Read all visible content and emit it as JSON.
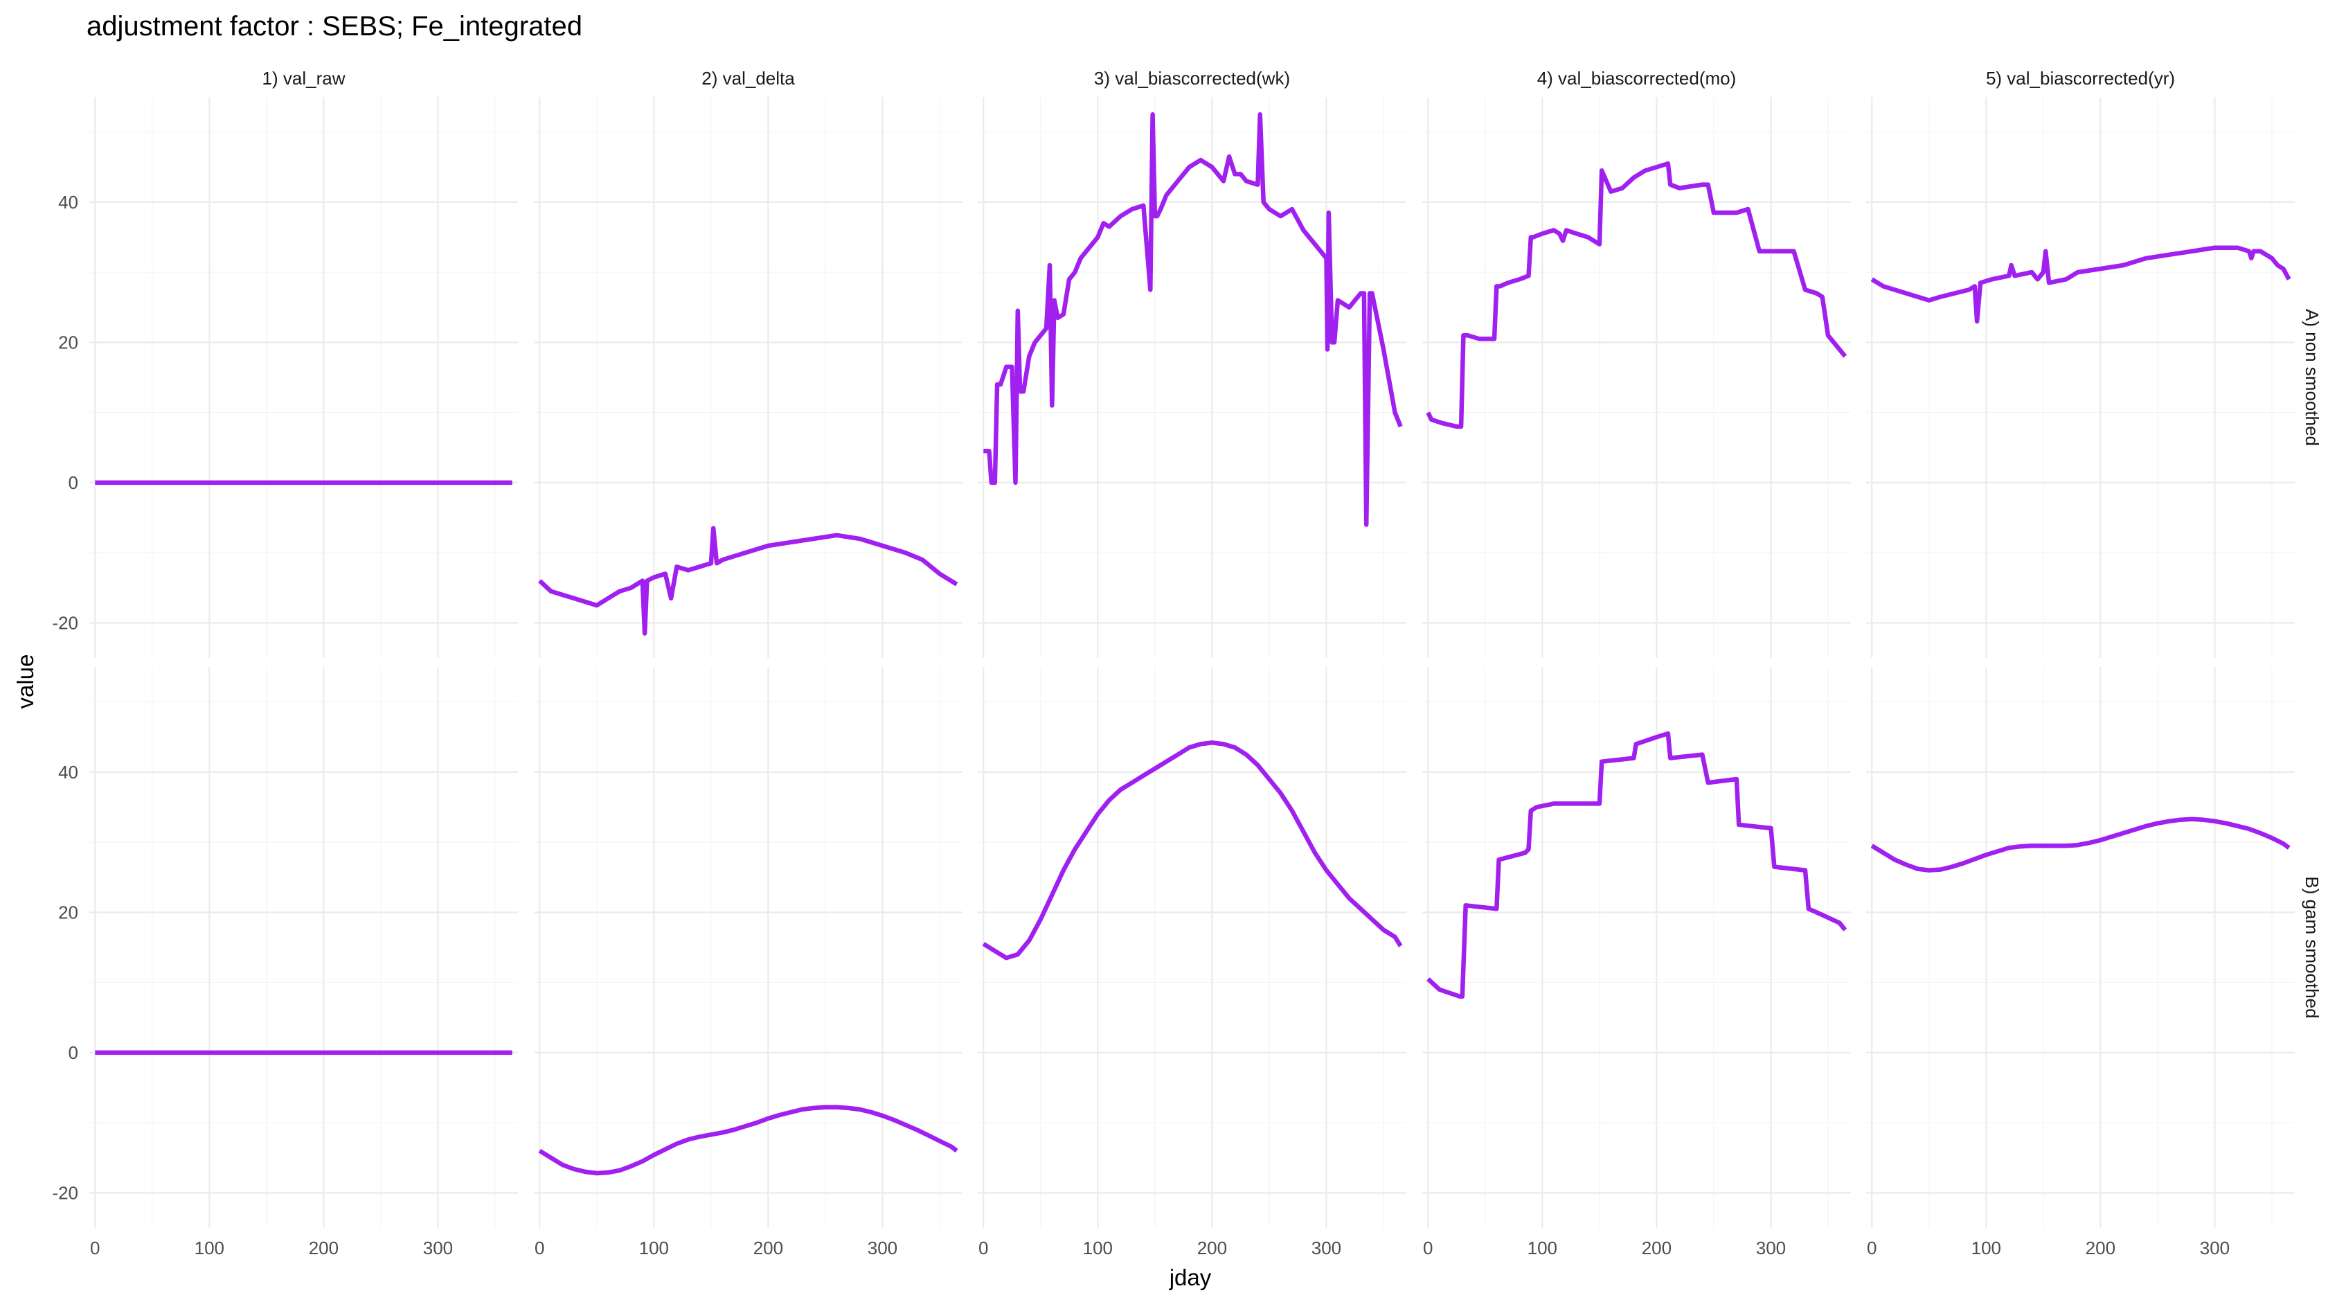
{
  "chart_data": {
    "type": "line",
    "title": "adjustment factor : SEBS; Fe_integrated",
    "xlabel": "jday",
    "ylabel": "value",
    "xlim": [
      -5,
      370
    ],
    "ylim": [
      -25,
      55
    ],
    "x_ticks": [
      0,
      100,
      200,
      300
    ],
    "y_ticks": [
      -20,
      0,
      20,
      40
    ],
    "grid": true,
    "line_color": "#A020F0",
    "columns": [
      "1) val_raw",
      "2) val_delta",
      "3) val_biascorrected(wk)",
      "4) val_biascorrected(mo)",
      "5) val_biascorrected(yr)"
    ],
    "rows": [
      "A) non smoothed",
      "B) gam smoothed"
    ],
    "panels": [
      [
        {
          "x": [
            0,
            365
          ],
          "y": [
            0,
            0
          ]
        },
        {
          "x": [
            0,
            10,
            20,
            30,
            40,
            50,
            60,
            70,
            80,
            90,
            92,
            94,
            100,
            110,
            115,
            120,
            130,
            150,
            152,
            155,
            160,
            180,
            200,
            220,
            240,
            260,
            280,
            300,
            320,
            335,
            350,
            365
          ],
          "y": [
            -14,
            -15.5,
            -16,
            -16.5,
            -17,
            -17.5,
            -16.5,
            -15.5,
            -15,
            -14,
            -21.5,
            -14,
            -13.5,
            -13,
            -16.5,
            -12,
            -12.5,
            -11.5,
            -6.5,
            -11.5,
            -11,
            -10,
            -9,
            -8.5,
            -8,
            -7.5,
            -8,
            -9,
            -10,
            -11,
            -13,
            -14.5
          ]
        },
        {
          "x": [
            0,
            5,
            7,
            10,
            12,
            15,
            20,
            25,
            28,
            30,
            32,
            35,
            40,
            45,
            50,
            55,
            58,
            60,
            62,
            65,
            70,
            75,
            80,
            85,
            90,
            95,
            100,
            105,
            110,
            120,
            130,
            140,
            146,
            148,
            150,
            152,
            155,
            160,
            170,
            180,
            190,
            200,
            210,
            215,
            220,
            225,
            230,
            240,
            242,
            245,
            250,
            260,
            270,
            280,
            290,
            300,
            301,
            302,
            305,
            307,
            310,
            320,
            330,
            333,
            335,
            338,
            340,
            350,
            360,
            365
          ],
          "y": [
            4.5,
            4.5,
            0,
            0,
            14,
            14,
            16.5,
            16.5,
            0,
            24.5,
            13,
            13,
            18,
            20,
            21,
            22,
            31,
            11,
            26,
            23.5,
            24,
            29,
            30,
            32,
            33,
            34,
            35,
            37,
            36.5,
            38,
            39,
            39.5,
            27.5,
            52.5,
            38,
            38,
            39,
            41,
            43,
            45,
            46,
            45,
            43,
            46.5,
            44,
            44,
            43,
            42.5,
            52.5,
            40,
            39,
            38,
            39,
            36,
            34,
            32,
            19,
            38.5,
            20,
            20,
            26,
            25,
            27,
            27,
            -6,
            27,
            27,
            19,
            10,
            8
          ]
        },
        {
          "x": [
            0,
            3,
            12,
            25,
            29,
            31,
            35,
            45,
            58,
            60,
            63,
            70,
            80,
            88,
            90,
            92,
            100,
            110,
            115,
            118,
            121,
            130,
            140,
            145,
            150,
            152,
            160,
            170,
            180,
            190,
            200,
            210,
            212,
            220,
            240,
            245,
            250,
            260,
            270,
            280,
            290,
            300,
            310,
            320,
            330,
            340,
            345,
            350,
            365
          ],
          "y": [
            10,
            9,
            8.5,
            8,
            8,
            21,
            21,
            20.5,
            20.5,
            28,
            28,
            28.5,
            29,
            29.5,
            35,
            35,
            35.5,
            36,
            35.5,
            34.5,
            36,
            35.5,
            35,
            34.5,
            34,
            44.5,
            41.5,
            42,
            43.5,
            44.5,
            45,
            45.5,
            42.5,
            42,
            42.5,
            42.5,
            38.5,
            38.5,
            38.5,
            39,
            33,
            33,
            33,
            33,
            27.5,
            27,
            26.5,
            21,
            18
          ]
        },
        {
          "x": [
            0,
            10,
            30,
            50,
            60,
            85,
            90,
            92,
            95,
            105,
            120,
            122,
            125,
            140,
            145,
            150,
            152,
            155,
            170,
            175,
            180,
            200,
            220,
            240,
            260,
            280,
            300,
            320,
            330,
            332,
            334,
            340,
            345,
            350,
            355,
            360,
            365
          ],
          "y": [
            29,
            28,
            27,
            26,
            26.5,
            27.5,
            28,
            23,
            28.5,
            29,
            29.5,
            31,
            29.5,
            30,
            29,
            30,
            33,
            28.5,
            29,
            29.5,
            30,
            30.5,
            31,
            32,
            32.5,
            33,
            33.5,
            33.5,
            33,
            32,
            33,
            33,
            32.5,
            32,
            31,
            30.5,
            29
          ]
        }
      ],
      [
        {
          "x": [
            0,
            365
          ],
          "y": [
            0,
            0
          ]
        },
        {
          "x": [
            0,
            10,
            20,
            30,
            40,
            50,
            60,
            70,
            80,
            90,
            100,
            110,
            120,
            130,
            140,
            150,
            160,
            170,
            180,
            190,
            200,
            210,
            220,
            230,
            240,
            250,
            260,
            270,
            280,
            290,
            300,
            310,
            320,
            330,
            340,
            350,
            360,
            365
          ],
          "y": [
            -14,
            -15,
            -16,
            -16.6,
            -17,
            -17.2,
            -17.1,
            -16.8,
            -16.2,
            -15.5,
            -14.6,
            -13.8,
            -13,
            -12.4,
            -12,
            -11.7,
            -11.4,
            -11,
            -10.5,
            -10,
            -9.4,
            -8.9,
            -8.5,
            -8.1,
            -7.9,
            -7.8,
            -7.8,
            -7.9,
            -8.1,
            -8.5,
            -9,
            -9.6,
            -10.3,
            -11,
            -11.8,
            -12.6,
            -13.4,
            -14
          ]
        },
        {
          "x": [
            0,
            10,
            20,
            30,
            40,
            50,
            60,
            70,
            80,
            90,
            100,
            110,
            120,
            130,
            140,
            150,
            160,
            170,
            180,
            190,
            200,
            210,
            220,
            230,
            240,
            250,
            260,
            270,
            280,
            290,
            300,
            310,
            320,
            330,
            340,
            350,
            360,
            365
          ],
          "y": [
            15.5,
            14.5,
            13.5,
            14,
            16,
            19,
            22.5,
            26,
            29,
            31.5,
            34,
            36,
            37.5,
            38.5,
            39.5,
            40.5,
            41.5,
            42.5,
            43.5,
            44,
            44.2,
            44,
            43.5,
            42.5,
            41,
            39,
            37,
            34.5,
            31.5,
            28.5,
            26,
            24,
            22,
            20.5,
            19,
            17.5,
            16.5,
            15.2
          ]
        },
        {
          "x": [
            0,
            10,
            28,
            30,
            33,
            60,
            62,
            85,
            88,
            90,
            95,
            110,
            115,
            150,
            152,
            180,
            182,
            200,
            210,
            212,
            240,
            245,
            270,
            272,
            300,
            303,
            330,
            333,
            340,
            360,
            365
          ],
          "y": [
            10.5,
            9,
            8,
            8,
            21,
            20.5,
            27.5,
            28.5,
            29,
            34.5,
            35,
            35.5,
            35.5,
            35.5,
            41.5,
            42,
            44,
            45,
            45.5,
            42,
            42.5,
            38.5,
            39,
            32.5,
            32,
            26.5,
            26,
            20.5,
            20,
            18.5,
            17.5
          ]
        },
        {
          "x": [
            0,
            10,
            20,
            30,
            40,
            50,
            60,
            70,
            80,
            90,
            100,
            110,
            120,
            130,
            140,
            150,
            160,
            170,
            180,
            190,
            200,
            210,
            220,
            230,
            240,
            250,
            260,
            270,
            280,
            290,
            300,
            310,
            320,
            330,
            340,
            350,
            360,
            365
          ],
          "y": [
            29.5,
            28.5,
            27.5,
            26.8,
            26.2,
            26,
            26.1,
            26.5,
            27,
            27.6,
            28.2,
            28.7,
            29.2,
            29.4,
            29.5,
            29.5,
            29.5,
            29.5,
            29.6,
            29.9,
            30.3,
            30.8,
            31.3,
            31.8,
            32.3,
            32.7,
            33,
            33.2,
            33.3,
            33.2,
            33,
            32.7,
            32.3,
            31.9,
            31.3,
            30.6,
            29.8,
            29.2
          ]
        }
      ]
    ]
  }
}
